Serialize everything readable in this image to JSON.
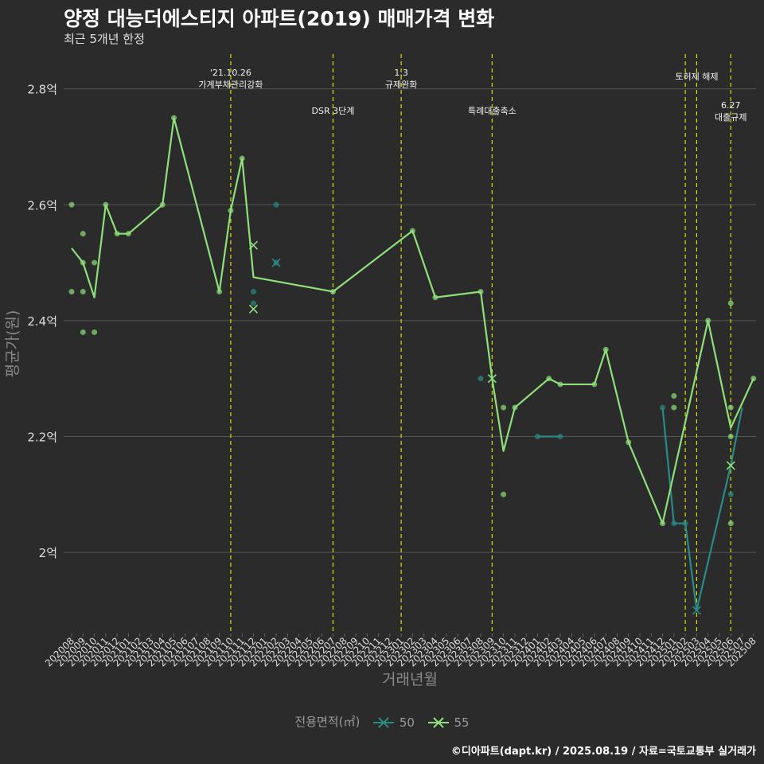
{
  "page": {
    "title": "양정 대능더에스티지 아파트(2019) 매매가격 변화",
    "subtitle": "최근 5개년 한정",
    "caption": "©디아파트(dapt.kr) / 2025.08.19 / 자료=국토교통부 실거래가"
  },
  "colors": {
    "background": "#2b2b2b",
    "grid": "#555555",
    "series_50": "#2a8a86",
    "series_55": "#8fe07a",
    "policy_line": "#d8e000"
  },
  "chart_data": {
    "type": "line",
    "xlabel": "거래년월",
    "ylabel": "평균가(원)",
    "y_ticks": [
      {
        "value": 2.0,
        "label": "2억"
      },
      {
        "value": 2.2,
        "label": "2.2억"
      },
      {
        "value": 2.4,
        "label": "2.4억"
      },
      {
        "value": 2.6,
        "label": "2.6억"
      },
      {
        "value": 2.8,
        "label": "2.8억"
      }
    ],
    "ylim": [
      1.86,
      2.86
    ],
    "y_unit": "억",
    "categories": [
      "202008",
      "202009",
      "202010",
      "202011",
      "202012",
      "202101",
      "202102",
      "202103",
      "202104",
      "202105",
      "202106",
      "202107",
      "202108",
      "202109",
      "202110",
      "202111",
      "202112",
      "202201",
      "202202",
      "202203",
      "202204",
      "202205",
      "202206",
      "202207",
      "202208",
      "202209",
      "202210",
      "202211",
      "202212",
      "202301",
      "202302",
      "202303",
      "202304",
      "202305",
      "202306",
      "202307",
      "202308",
      "202309",
      "202310",
      "202311",
      "202312",
      "202401",
      "202402",
      "202403",
      "202404",
      "202405",
      "202406",
      "202407",
      "202408",
      "202409",
      "202410",
      "202411",
      "202412",
      "202501",
      "202502",
      "202503",
      "202504",
      "202505",
      "202506",
      "202507",
      "202508"
    ],
    "legend": {
      "title": "전용면적(㎡)",
      "position": "bottom"
    },
    "series": [
      {
        "name": "50",
        "color": "#2a8a86",
        "line": [
          {
            "x": "202412",
            "y": 2.25
          },
          {
            "x": "202501",
            "y": 2.05
          },
          {
            "x": "202502",
            "y": 2.05
          },
          {
            "x": "202503",
            "y": 1.9
          },
          {
            "x": "202506",
            "y": 2.15
          },
          {
            "x": "202507",
            "y": 2.25
          }
        ],
        "line_segments": [
          [
            {
              "x": "202401",
              "y": 2.2
            },
            {
              "x": "202403",
              "y": 2.2
            }
          ]
        ],
        "points": [
          {
            "x": "202112",
            "y": 2.45
          },
          {
            "x": "202112",
            "y": 2.43
          },
          {
            "x": "202202",
            "y": 2.6
          },
          {
            "x": "202202",
            "y": 2.5
          },
          {
            "x": "202308",
            "y": 2.3
          },
          {
            "x": "202401",
            "y": 2.2
          },
          {
            "x": "202403",
            "y": 2.2
          },
          {
            "x": "202412",
            "y": 2.25
          },
          {
            "x": "202501",
            "y": 2.05
          },
          {
            "x": "202502",
            "y": 2.05
          },
          {
            "x": "202506",
            "y": 2.1
          }
        ],
        "cross_points": [
          {
            "x": "202202",
            "y": 2.5
          },
          {
            "x": "202503",
            "y": 1.9
          }
        ]
      },
      {
        "name": "55",
        "color": "#8fe07a",
        "line": [
          {
            "x": "202008",
            "y": 2.525
          },
          {
            "x": "202009",
            "y": 2.5
          },
          {
            "x": "202010",
            "y": 2.44
          },
          {
            "x": "202011",
            "y": 2.6
          },
          {
            "x": "202012",
            "y": 2.55
          },
          {
            "x": "202101",
            "y": 2.55
          },
          {
            "x": "202104",
            "y": 2.6
          },
          {
            "x": "202105",
            "y": 2.75
          },
          {
            "x": "202109",
            "y": 2.45
          },
          {
            "x": "202110",
            "y": 2.59
          },
          {
            "x": "202111",
            "y": 2.68
          },
          {
            "x": "202112",
            "y": 2.475
          },
          {
            "x": "202207",
            "y": 2.45
          },
          {
            "x": "202302",
            "y": 2.555
          },
          {
            "x": "202304",
            "y": 2.44
          },
          {
            "x": "202308",
            "y": 2.45
          },
          {
            "x": "202309",
            "y": 2.3
          },
          {
            "x": "202310",
            "y": 2.175
          },
          {
            "x": "202311",
            "y": 2.25
          },
          {
            "x": "202402",
            "y": 2.3
          },
          {
            "x": "202403",
            "y": 2.29
          },
          {
            "x": "202406",
            "y": 2.29
          },
          {
            "x": "202407",
            "y": 2.35
          },
          {
            "x": "202409",
            "y": 2.19
          },
          {
            "x": "202412",
            "y": 2.05
          },
          {
            "x": "202504",
            "y": 2.4
          },
          {
            "x": "202506",
            "y": 2.215
          },
          {
            "x": "202508",
            "y": 2.3
          }
        ],
        "points": [
          {
            "x": "202008",
            "y": 2.6
          },
          {
            "x": "202008",
            "y": 2.45
          },
          {
            "x": "202009",
            "y": 2.55
          },
          {
            "x": "202009",
            "y": 2.5
          },
          {
            "x": "202009",
            "y": 2.45
          },
          {
            "x": "202009",
            "y": 2.38
          },
          {
            "x": "202010",
            "y": 2.5
          },
          {
            "x": "202010",
            "y": 2.38
          },
          {
            "x": "202011",
            "y": 2.6
          },
          {
            "x": "202012",
            "y": 2.55
          },
          {
            "x": "202101",
            "y": 2.55
          },
          {
            "x": "202104",
            "y": 2.6
          },
          {
            "x": "202105",
            "y": 2.75
          },
          {
            "x": "202109",
            "y": 2.45
          },
          {
            "x": "202110",
            "y": 2.59
          },
          {
            "x": "202111",
            "y": 2.68
          },
          {
            "x": "202207",
            "y": 2.45
          },
          {
            "x": "202302",
            "y": 2.555
          },
          {
            "x": "202304",
            "y": 2.44
          },
          {
            "x": "202308",
            "y": 2.45
          },
          {
            "x": "202310",
            "y": 2.25
          },
          {
            "x": "202310",
            "y": 2.1
          },
          {
            "x": "202311",
            "y": 2.25
          },
          {
            "x": "202402",
            "y": 2.3
          },
          {
            "x": "202403",
            "y": 2.29
          },
          {
            "x": "202406",
            "y": 2.29
          },
          {
            "x": "202407",
            "y": 2.35
          },
          {
            "x": "202409",
            "y": 2.19
          },
          {
            "x": "202412",
            "y": 2.05
          },
          {
            "x": "202501",
            "y": 2.27
          },
          {
            "x": "202501",
            "y": 2.25
          },
          {
            "x": "202504",
            "y": 2.4
          },
          {
            "x": "202506",
            "y": 2.43
          },
          {
            "x": "202506",
            "y": 2.25
          },
          {
            "x": "202506",
            "y": 2.2
          },
          {
            "x": "202506",
            "y": 2.05
          },
          {
            "x": "202508",
            "y": 2.3
          }
        ],
        "cross_points": [
          {
            "x": "202112",
            "y": 2.53
          },
          {
            "x": "202112",
            "y": 2.42
          },
          {
            "x": "202309",
            "y": 2.3
          },
          {
            "x": "202506",
            "y": 2.15
          }
        ]
      }
    ],
    "policy_lines": [
      {
        "x": "202110",
        "label": [
          "'21.10.26",
          "가계부채관리강화"
        ],
        "label_row": 1
      },
      {
        "x": "202207",
        "label": [
          "DSR 3단계"
        ],
        "label_row": 2
      },
      {
        "x": "202301",
        "label": [
          "1.3",
          "규제완화"
        ],
        "label_row": 1
      },
      {
        "x": "202309",
        "label": [
          "특례대출축소"
        ],
        "label_row": 2
      },
      {
        "x": "202502",
        "label": [],
        "label_row": 0
      },
      {
        "x": "202503",
        "label": [
          "토허제 해제"
        ],
        "label_row": 1
      },
      {
        "x": "202506",
        "label": [
          "6.27",
          "대출규제"
        ],
        "label_row": 3
      }
    ]
  }
}
